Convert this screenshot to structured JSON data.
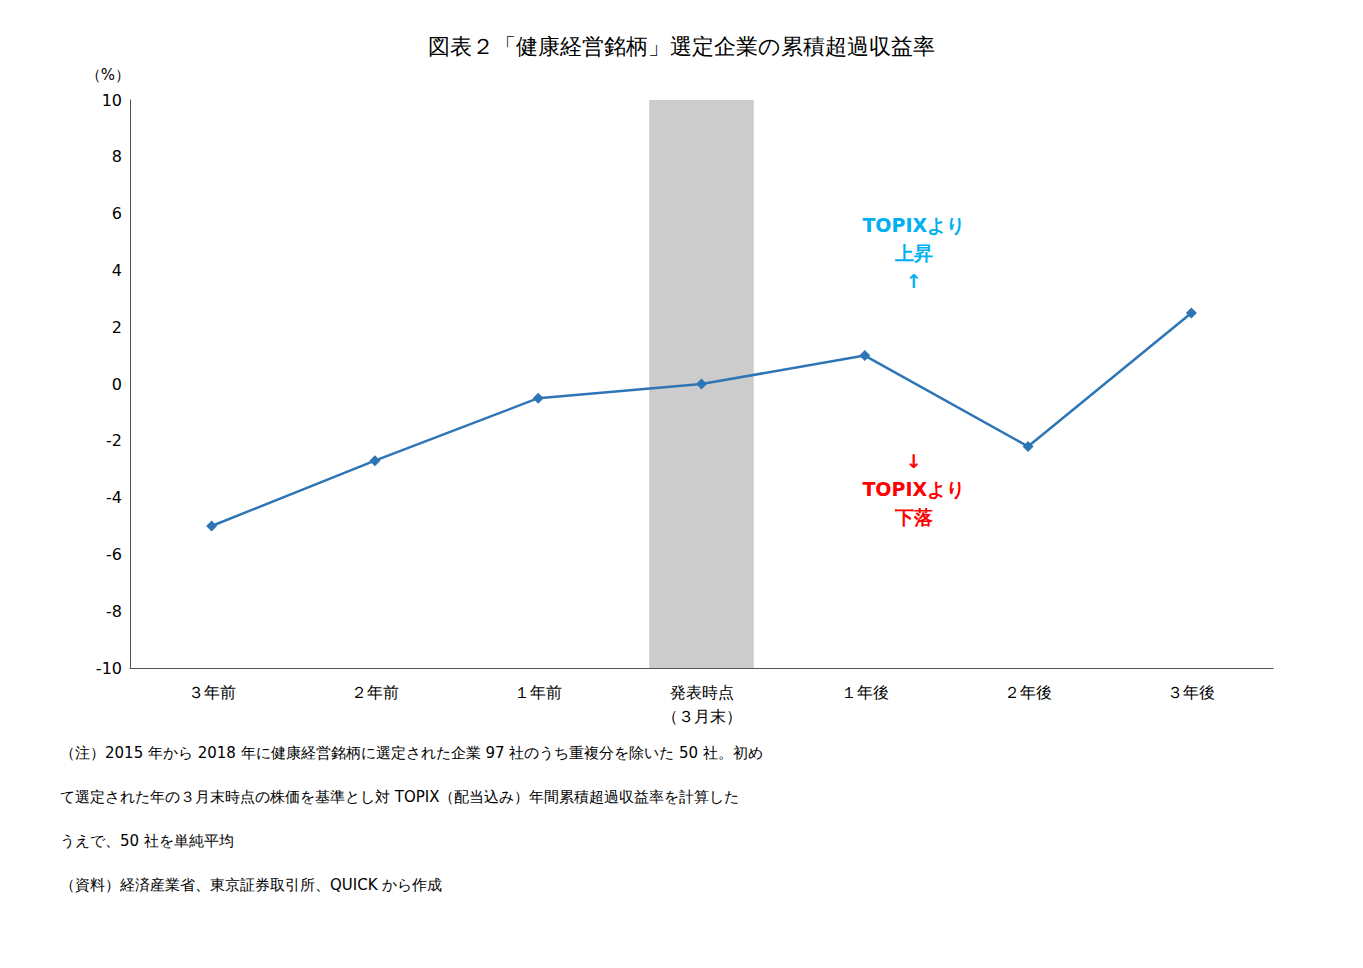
{
  "chart_data": {
    "type": "line",
    "title": "図表２「健康経営銘柄」選定企業の累積超過収益率",
    "ylabel": "（%）",
    "categories": [
      "３年前",
      "２年前",
      "１年前",
      "発表時点\n（３月末）",
      "１年後",
      "２年後",
      "３年後"
    ],
    "values": [
      -5.0,
      -2.7,
      -0.5,
      0.0,
      1.0,
      -2.2,
      2.5
    ],
    "color": "#2E75B6",
    "marker": "diamond",
    "ylim": [
      -10,
      10
    ],
    "yticks": [
      -10,
      -8,
      -6,
      -4,
      -2,
      0,
      2,
      4,
      6,
      8,
      10
    ],
    "grid": false,
    "shaded_category": "発表時点\n（３月末）",
    "shaded_color": "#CCCCCC",
    "annotations": [
      {
        "text": "TOPIXより\n上昇\n↑",
        "color": "#00B0F0"
      },
      {
        "text": "↓\nTOPIXより\n下落",
        "color": "#FF0000"
      }
    ],
    "notes": [
      "（注）2015 年から 2018 年に健康経営銘柄に選定された企業 97 社のうち重複分を除いた 50 社。初め",
      "て選定された年の３月末時点の株価を基準とし対 TOPIX（配当込み）年間累積超過収益率を計算した",
      "うえで、50 社を単純平均",
      "（資料）経済産業省、東京証券取引所、QUICK から作成"
    ],
    "background_color": "#FFFFFF"
  }
}
